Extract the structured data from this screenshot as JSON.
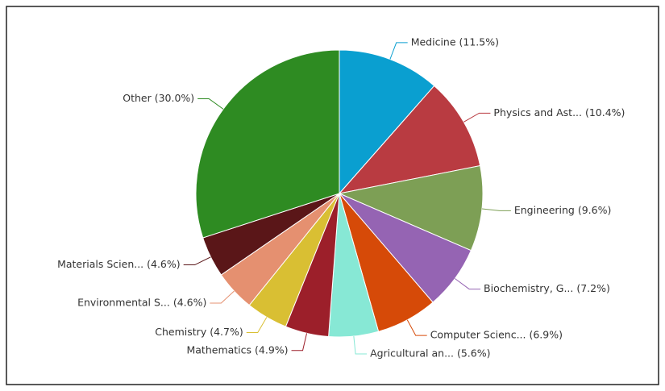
{
  "chart_data": {
    "type": "pie",
    "categories": [
      "Medicine (11.5%)",
      "Physics and Ast... (10.4%)",
      "Engineering (9.6%)",
      "Biochemistry, G... (7.2%)",
      "Computer Scienc... (6.9%)",
      "Agricultural an... (5.6%)",
      "Mathematics (4.9%)",
      "Chemistry (4.7%)",
      "Environmental S... (4.6%)",
      "Materials Scien... (4.6%)",
      "Other (30.0%)"
    ],
    "values": [
      11.5,
      10.4,
      9.6,
      7.2,
      6.9,
      5.6,
      4.9,
      4.7,
      4.6,
      4.6,
      30.0
    ],
    "colors": [
      "#0a9fd0",
      "#b93b41",
      "#7d9f55",
      "#9564b3",
      "#d64a08",
      "#87e8d5",
      "#9c1f2a",
      "#d9bf33",
      "#e59070",
      "#5a1618",
      "#2e8b22"
    ]
  }
}
